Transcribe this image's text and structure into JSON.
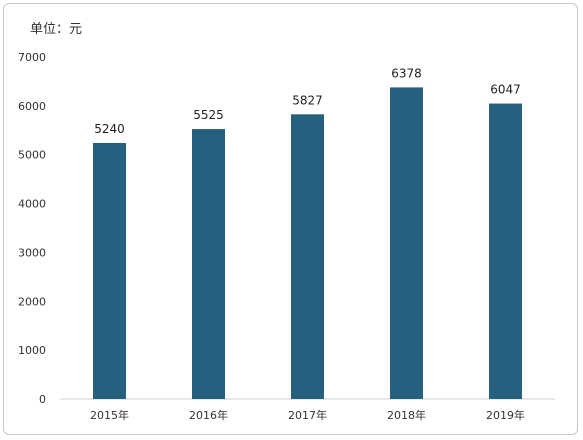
{
  "unit_label": "单位：元",
  "chart_data": {
    "type": "bar",
    "categories": [
      "2015年",
      "2016年",
      "2017年",
      "2018年",
      "2019年"
    ],
    "values": [
      5240,
      5525,
      5827,
      6378,
      6047
    ],
    "ylim": [
      0,
      7000
    ],
    "yticks": [
      0,
      1000,
      2000,
      3000,
      4000,
      5000,
      6000,
      7000
    ],
    "grid": false,
    "legend": "none",
    "bar_color": "#26607f",
    "data_labels": [
      "5240",
      "5525",
      "5827",
      "6378",
      "6047"
    ]
  }
}
